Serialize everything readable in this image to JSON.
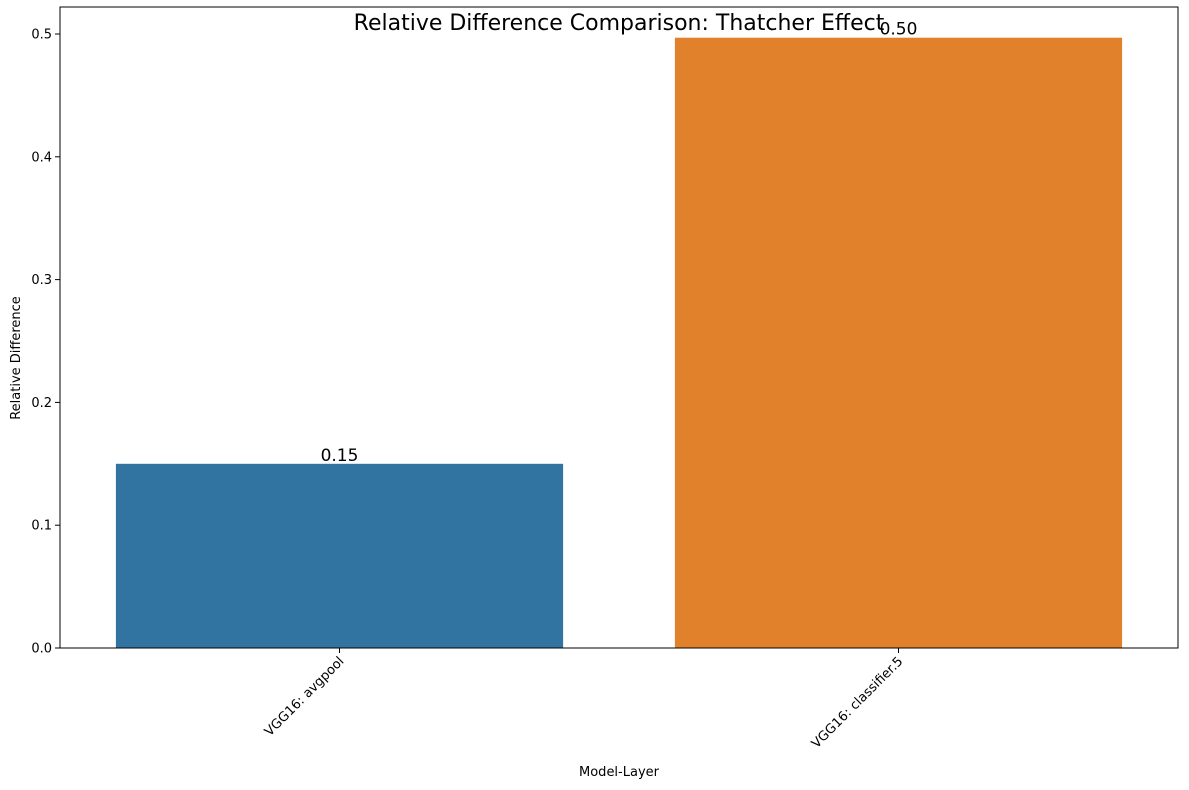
{
  "chart_data": {
    "type": "bar",
    "title": "Relative Difference Comparison: Thatcher Effect",
    "xlabel": "Model-Layer",
    "ylabel": "Relative Difference",
    "categories": [
      "VGG16: avgpool",
      "VGG16: classifier.5"
    ],
    "values": [
      0.15,
      0.497
    ],
    "data_labels": [
      "0.15",
      "0.50"
    ],
    "colors": [
      "#3274a1",
      "#e1812c"
    ],
    "ylim": [
      0,
      0.522
    ],
    "yticks": [
      0.0,
      0.1,
      0.2,
      0.3,
      0.4,
      0.5
    ],
    "ytick_labels": [
      "0.0",
      "0.1",
      "0.2",
      "0.3",
      "0.4",
      "0.5"
    ],
    "grid": false,
    "legend": "none"
  }
}
